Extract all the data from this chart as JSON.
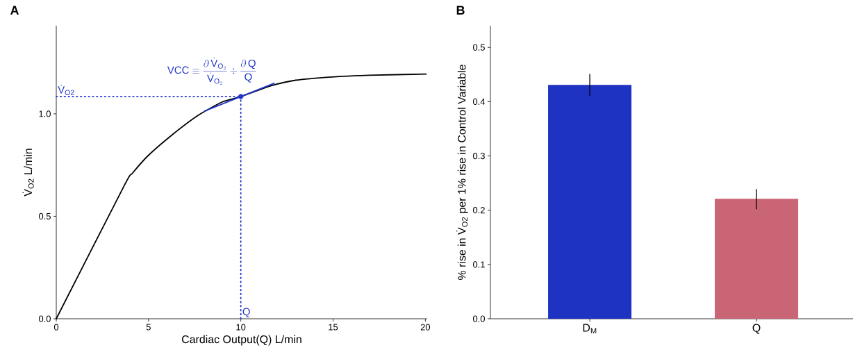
{
  "chart_data": [
    {
      "type": "line",
      "title": "A",
      "xlabel": "Cardiac Output(Q)  L/min",
      "ylabel": "V̇$_{O2}$  L/min",
      "xlim": [
        0,
        20.1
      ],
      "ylim": [
        0,
        1.43
      ],
      "xticks": [
        0,
        5,
        10,
        15,
        20
      ],
      "yticks": [
        {
          "value": 0,
          "label": "0.0"
        },
        {
          "value": 0.5,
          "label": "0.5"
        },
        {
          "value": 1.0,
          "label": "1.0"
        }
      ],
      "series": [
        {
          "color": "#000000",
          "x": [
            0,
            3.72,
            4.12,
            5.0,
            6.37,
            7.69,
            9.0,
            10.0,
            11.65,
            12.97,
            14.95,
            16.93,
            20.04
          ],
          "values": [
            0,
            0.656,
            0.709,
            0.798,
            0.904,
            0.993,
            1.058,
            1.084,
            1.137,
            1.164,
            1.18,
            1.188,
            1.194
          ]
        },
        {
          "type": "line",
          "color": "#2236c8",
          "line_style": "dotted",
          "x": [
            0,
            10.0
          ],
          "values": [
            1.084,
            1.084
          ]
        },
        {
          "type": "line",
          "color": "#2236c8",
          "line_style": "dotted",
          "x": [
            10.0,
            10.0
          ],
          "values": [
            0,
            1.084
          ]
        },
        {
          "type": "line",
          "color": "#2236c8",
          "x": [
            8.02,
            11.81
          ],
          "values": [
            1.013,
            1.149
          ]
        },
        {
          "type": "scatter",
          "color": "#2236c8",
          "marker": "circle",
          "x": [
            10.0
          ],
          "values": [
            1.084
          ]
        }
      ],
      "annotations": [
        "\\text{VCC}\\equiv\\frac{\\partial\\,\\dot{\\text{V}}_{\\text{O}_2}}{\\dot{\\text{V}}_{\\text{O}_2}}\\div\\frac{\\partial\\,\\text{Q}}{\\text{Q}}",
        {
          "text": "V̇$_{O2}$",
          "x": 0,
          "y": 1.084
        },
        {
          "text": "Q",
          "x": 10.0,
          "y": 0
        }
      ]
    },
    {
      "type": "bar",
      "title": "B",
      "ylabel": "% rise in V̇$_{O2}$ per 1% rise in Control Variable",
      "categories": [
        "D$_{M}$",
        "Q"
      ],
      "values": [
        0.431,
        0.221
      ],
      "colors": [
        "#1f33c2",
        "#c96574"
      ],
      "errors": [
        [
          0.411,
          0.451
        ],
        [
          0.202,
          0.239
        ]
      ],
      "ylim": [
        0,
        0.54
      ],
      "yticks": [
        {
          "value": 0,
          "label": "0.0"
        },
        {
          "value": 0.1,
          "label": "0.1"
        },
        {
          "value": 0.2,
          "label": "0.2"
        },
        {
          "value": 0.3,
          "label": "0.3"
        },
        {
          "value": 0.4,
          "label": "0.4"
        },
        {
          "value": 0.5,
          "label": "0.5"
        }
      ]
    }
  ]
}
